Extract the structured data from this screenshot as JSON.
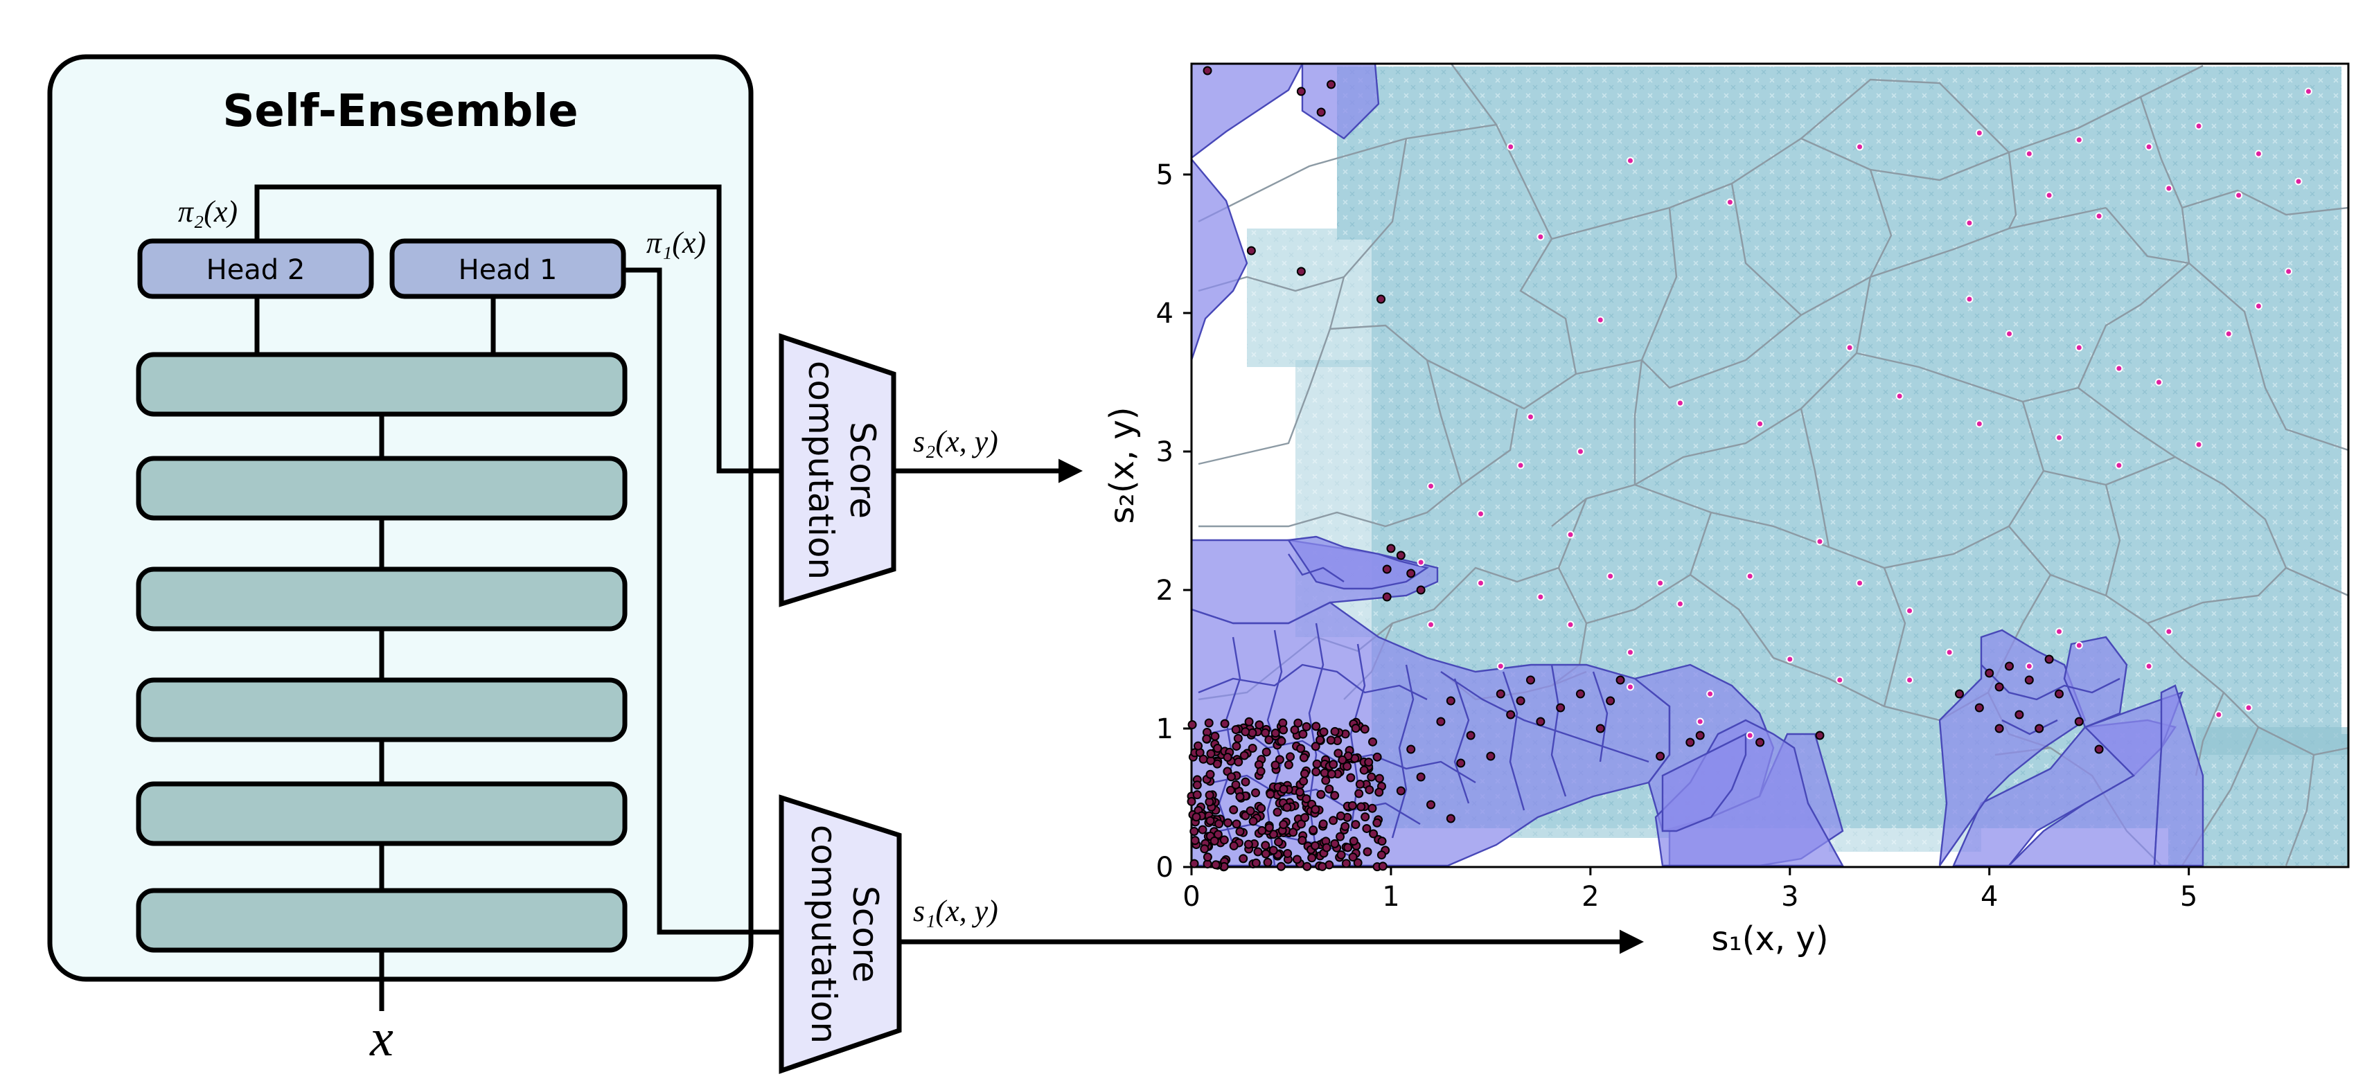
{
  "diagram": {
    "title": "Self-Ensemble",
    "heads": [
      {
        "label": "Head 2",
        "output": "π₂(x)"
      },
      {
        "label": "Head 1",
        "output": "π₁(x)"
      }
    ],
    "layer_count": 6,
    "input_label": "x",
    "score_blocks": [
      {
        "label_line1": "Score",
        "label_line2": "computation",
        "output": "s₂(x, y)"
      },
      {
        "label_line1": "Score",
        "label_line2": "computation",
        "output": "s₁(x, y)"
      }
    ]
  },
  "colors": {
    "panel_fill": "#eefafb",
    "head_fill": "#aab8dd",
    "layer_fill": "#a7c8c8",
    "score_fill": "#e6e6fb",
    "cloud": "#a9d2de",
    "region_fill": "#8c8ceb",
    "region_edge": "#4848b8",
    "grid_edge": "#8c9aa4",
    "dot_fill": "#7a1848",
    "point_fill": "#e020a0"
  },
  "chart_data": {
    "type": "scatter",
    "xlabel": "s₁(x, y)",
    "ylabel": "s₂(x, y)",
    "xlim": [
      0,
      5.8
    ],
    "ylim": [
      0,
      5.8
    ],
    "xticks": [
      "0",
      "1",
      "2",
      "3",
      "4",
      "5"
    ],
    "yticks": [
      "0",
      "1",
      "2",
      "3",
      "4",
      "5"
    ],
    "grid": false,
    "legend": "none",
    "series": [
      {
        "points": [
          [
            1.6,
            5.2
          ],
          [
            2.2,
            5.1
          ],
          [
            3.35,
            5.2
          ],
          [
            3.95,
            5.3
          ],
          [
            4.2,
            5.15
          ],
          [
            4.45,
            5.25
          ],
          [
            4.8,
            5.2
          ],
          [
            5.05,
            5.35
          ],
          [
            5.35,
            5.15
          ],
          [
            5.6,
            5.6
          ],
          [
            3.9,
            4.65
          ],
          [
            4.3,
            4.85
          ],
          [
            4.55,
            4.7
          ],
          [
            4.9,
            4.9
          ],
          [
            5.25,
            4.85
          ],
          [
            5.55,
            4.95
          ],
          [
            2.7,
            4.8
          ],
          [
            1.75,
            4.55
          ],
          [
            3.9,
            4.1
          ],
          [
            4.1,
            3.85
          ],
          [
            4.45,
            3.75
          ],
          [
            4.65,
            3.6
          ],
          [
            4.85,
            3.5
          ],
          [
            5.2,
            3.85
          ],
          [
            5.35,
            4.05
          ],
          [
            5.5,
            4.3
          ],
          [
            2.05,
            3.95
          ],
          [
            3.3,
            3.75
          ],
          [
            3.55,
            3.4
          ],
          [
            3.95,
            3.2
          ],
          [
            4.35,
            3.1
          ],
          [
            4.65,
            2.9
          ],
          [
            5.05,
            3.05
          ],
          [
            1.7,
            3.25
          ],
          [
            1.95,
            3.0
          ],
          [
            2.45,
            3.35
          ],
          [
            2.85,
            3.2
          ],
          [
            1.2,
            2.75
          ],
          [
            1.45,
            2.55
          ],
          [
            1.65,
            2.9
          ],
          [
            1.9,
            2.4
          ],
          [
            2.1,
            2.1
          ],
          [
            2.35,
            2.05
          ],
          [
            1.15,
            2.2
          ],
          [
            1.45,
            2.05
          ],
          [
            1.75,
            1.95
          ],
          [
            2.45,
            1.9
          ],
          [
            2.8,
            2.1
          ],
          [
            3.15,
            2.35
          ],
          [
            3.35,
            2.05
          ],
          [
            3.6,
            1.85
          ],
          [
            3.8,
            1.55
          ],
          [
            4.2,
            1.45
          ],
          [
            4.45,
            1.6
          ],
          [
            4.8,
            1.45
          ],
          [
            5.15,
            1.1
          ],
          [
            3.0,
            1.5
          ],
          [
            3.25,
            1.35
          ],
          [
            3.6,
            1.35
          ],
          [
            2.6,
            1.25
          ],
          [
            2.2,
            1.55
          ],
          [
            1.9,
            1.75
          ],
          [
            1.2,
            1.75
          ],
          [
            1.55,
            1.45
          ],
          [
            2.8,
            0.95
          ],
          [
            2.55,
            1.05
          ],
          [
            2.2,
            1.3
          ],
          [
            4.35,
            1.7
          ],
          [
            4.9,
            1.7
          ],
          [
            5.3,
            1.15
          ]
        ],
        "point_color": "#e020a0"
      },
      {
        "points": [
          [
            0.08,
            5.75
          ],
          [
            0.55,
            5.6
          ],
          [
            0.7,
            5.65
          ],
          [
            0.65,
            5.45
          ],
          [
            0.3,
            4.45
          ],
          [
            0.55,
            4.3
          ],
          [
            0.95,
            4.1
          ],
          [
            1.0,
            2.3
          ],
          [
            1.05,
            2.25
          ],
          [
            0.98,
            2.15
          ],
          [
            1.1,
            2.12
          ],
          [
            1.15,
            2.0
          ],
          [
            0.98,
            1.95
          ],
          [
            1.55,
            1.25
          ],
          [
            1.6,
            1.1
          ],
          [
            1.65,
            1.2
          ],
          [
            1.75,
            1.05
          ],
          [
            1.85,
            1.15
          ],
          [
            1.95,
            1.25
          ],
          [
            2.05,
            1.0
          ],
          [
            2.1,
            1.2
          ],
          [
            2.15,
            1.35
          ],
          [
            1.7,
            1.35
          ],
          [
            1.3,
            1.2
          ],
          [
            1.25,
            1.05
          ],
          [
            1.4,
            0.95
          ],
          [
            1.5,
            0.8
          ],
          [
            1.35,
            0.75
          ],
          [
            1.1,
            0.85
          ],
          [
            1.15,
            0.65
          ],
          [
            1.05,
            0.55
          ],
          [
            1.2,
            0.45
          ],
          [
            1.3,
            0.35
          ],
          [
            2.5,
            0.9
          ],
          [
            2.55,
            0.95
          ],
          [
            2.35,
            0.8
          ],
          [
            2.85,
            0.9
          ],
          [
            3.15,
            0.95
          ],
          [
            3.85,
            1.25
          ],
          [
            3.95,
            1.15
          ],
          [
            4.05,
            1.3
          ],
          [
            4.15,
            1.1
          ],
          [
            4.2,
            1.35
          ],
          [
            4.35,
            1.25
          ],
          [
            4.45,
            1.05
          ],
          [
            4.55,
            0.85
          ],
          [
            4.1,
            1.45
          ],
          [
            4.3,
            1.5
          ],
          [
            4.0,
            1.4
          ],
          [
            4.25,
            1.0
          ],
          [
            4.05,
            1.0
          ]
        ],
        "point_color": "#7a1848"
      }
    ]
  }
}
